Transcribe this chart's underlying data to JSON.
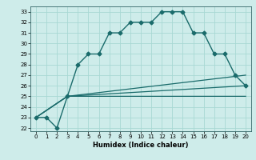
{
  "xlabel": "Humidex (Indice chaleur)",
  "ylabel": "",
  "bg_color": "#ceecea",
  "grid_color": "#a8d8d4",
  "line_color": "#1a6b6b",
  "xlim": [
    -0.5,
    20.5
  ],
  "ylim": [
    21.7,
    33.5
  ],
  "xticks": [
    0,
    1,
    2,
    3,
    4,
    5,
    6,
    7,
    8,
    9,
    10,
    11,
    12,
    13,
    14,
    15,
    16,
    17,
    18,
    19,
    20
  ],
  "yticks": [
    22,
    23,
    24,
    25,
    26,
    27,
    28,
    29,
    30,
    31,
    32,
    33
  ],
  "series": [
    {
      "x": [
        0,
        1,
        2,
        3,
        4,
        5,
        6,
        7,
        8,
        9,
        10,
        11,
        12,
        13,
        14,
        15,
        16,
        17,
        18,
        19,
        20
      ],
      "y": [
        23,
        23,
        22,
        25,
        28,
        29,
        29,
        31,
        31,
        32,
        32,
        32,
        33,
        33,
        33,
        31,
        31,
        29,
        29,
        27,
        26
      ],
      "marker": "D",
      "markersize": 2.5,
      "linewidth": 1.0
    },
    {
      "x": [
        0,
        3,
        20
      ],
      "y": [
        23,
        25,
        27
      ],
      "marker": null,
      "markersize": 0,
      "linewidth": 0.9
    },
    {
      "x": [
        0,
        3,
        20
      ],
      "y": [
        23,
        25,
        26
      ],
      "marker": null,
      "markersize": 0,
      "linewidth": 0.9
    },
    {
      "x": [
        0,
        3,
        20
      ],
      "y": [
        23,
        25,
        25
      ],
      "marker": null,
      "markersize": 0,
      "linewidth": 0.9
    }
  ]
}
